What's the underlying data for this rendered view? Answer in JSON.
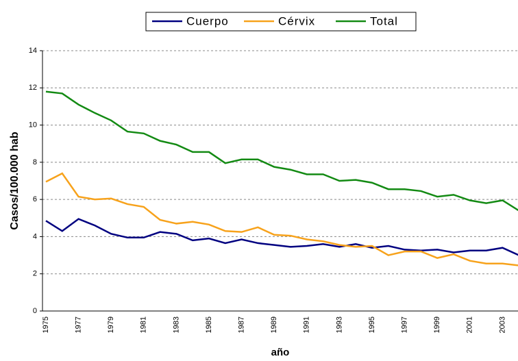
{
  "chart_data": {
    "type": "line",
    "x_label": "año",
    "y_label": "Casos/100.000 hab",
    "categories": [
      "1975",
      null,
      "1977",
      null,
      "1979",
      null,
      "1981",
      null,
      "1983",
      null,
      "1985",
      null,
      "1987",
      null,
      "1989",
      null,
      "1991",
      null,
      "1993",
      null,
      "1995",
      null,
      "1997",
      null,
      "1999",
      null,
      "2001",
      null,
      "2003",
      null
    ],
    "series": [
      {
        "name": "Cuerpo",
        "color": "#000080",
        "values": [
          4.85,
          4.3,
          4.95,
          4.6,
          4.15,
          3.95,
          3.95,
          4.25,
          4.15,
          3.8,
          3.9,
          3.65,
          3.85,
          3.65,
          3.55,
          3.45,
          3.5,
          3.6,
          3.45,
          3.6,
          3.4,
          3.5,
          3.3,
          3.25,
          3.3,
          3.15,
          3.25,
          3.25,
          3.4,
          3.0
        ]
      },
      {
        "name": "Cérvix",
        "color": "#f7a21b",
        "values": [
          6.95,
          7.4,
          6.15,
          6.0,
          6.05,
          5.75,
          5.6,
          4.9,
          4.7,
          4.8,
          4.65,
          4.3,
          4.25,
          4.5,
          4.1,
          4.05,
          3.85,
          3.75,
          3.55,
          3.45,
          3.5,
          3.0,
          3.2,
          3.2,
          2.85,
          3.05,
          2.7,
          2.55,
          2.55,
          2.45
        ]
      },
      {
        "name": "Total",
        "color": "#138a13",
        "values": [
          11.8,
          11.7,
          11.1,
          10.65,
          10.25,
          9.65,
          9.55,
          9.15,
          8.95,
          8.55,
          8.55,
          7.95,
          8.15,
          8.15,
          7.75,
          7.6,
          7.35,
          7.35,
          7.0,
          7.05,
          6.9,
          6.55,
          6.55,
          6.45,
          6.15,
          6.25,
          5.95,
          5.8,
          5.95,
          5.4
        ]
      }
    ],
    "ylim": [
      0,
      14
    ],
    "yticks": [
      0,
      2,
      4,
      6,
      8,
      10,
      12,
      14
    ],
    "grid": true,
    "legend": "top"
  }
}
